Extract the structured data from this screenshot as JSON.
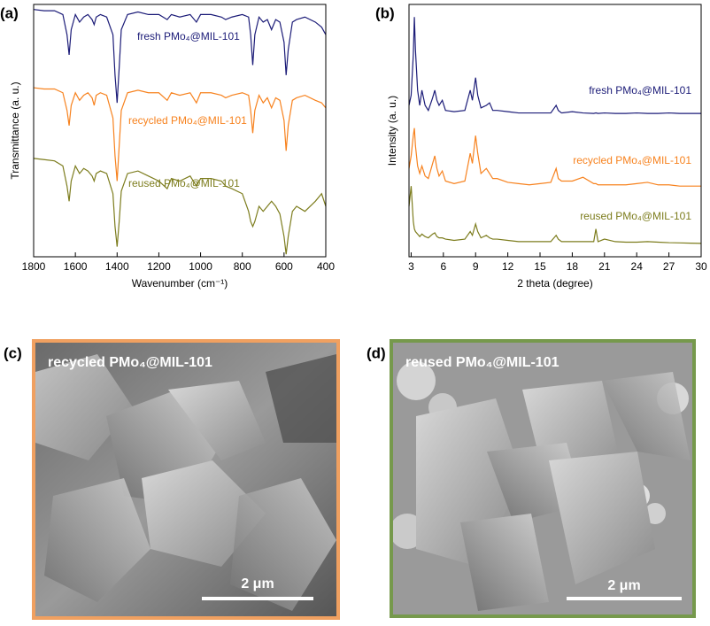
{
  "chart_data": [
    {
      "type": "line",
      "panel": "(a)",
      "xlabel": "Wavenumber (cm⁻¹)",
      "ylabel": "Transmittance (a. u.)",
      "xlim": [
        1800,
        400
      ],
      "xticks": [
        1800,
        1600,
        1400,
        1200,
        1000,
        800,
        600,
        400
      ],
      "ylim": [
        0,
        100
      ],
      "x": [
        1800,
        1750,
        1700,
        1660,
        1640,
        1630,
        1620,
        1600,
        1580,
        1560,
        1540,
        1520,
        1510,
        1500,
        1480,
        1450,
        1420,
        1410,
        1400,
        1390,
        1380,
        1350,
        1300,
        1250,
        1200,
        1160,
        1140,
        1100,
        1050,
        1020,
        1000,
        950,
        900,
        880,
        850,
        800,
        770,
        760,
        750,
        740,
        720,
        700,
        680,
        660,
        640,
        620,
        600,
        590,
        580,
        560,
        540,
        500,
        450,
        420,
        400
      ],
      "series": [
        {
          "name": "fresh PMo₄@MIL-101",
          "color": "#1c1c78",
          "values": [
            98,
            97.5,
            97.5,
            96,
            88,
            80,
            90,
            96,
            93,
            95,
            96,
            94,
            92,
            95,
            96,
            95,
            88,
            72,
            61,
            75,
            90,
            96,
            97,
            96,
            96,
            94,
            96,
            95,
            96,
            93,
            96,
            96,
            95,
            94,
            95,
            96,
            95,
            88,
            76,
            88,
            95,
            93,
            94,
            90,
            94,
            93,
            85,
            72,
            82,
            93,
            94,
            95,
            93,
            91,
            88
          ]
        },
        {
          "name": "recycled PMo₄@MIL-101",
          "color": "#f7821e",
          "values": [
            67,
            66.5,
            66.5,
            65,
            58,
            52,
            60,
            65,
            62,
            64,
            65,
            63,
            60,
            64,
            65,
            64,
            55,
            40,
            30,
            44,
            58,
            65,
            66,
            65,
            65,
            62,
            65,
            64,
            65,
            61,
            65,
            65,
            64,
            63,
            64,
            65,
            64,
            58,
            49,
            58,
            64,
            61,
            63,
            59,
            63,
            62,
            54,
            42,
            52,
            62,
            63,
            64,
            62,
            61,
            59
          ]
        },
        {
          "name": "reused PMo₄@MIL-101",
          "color": "#7d7d1e",
          "values": [
            39,
            38.5,
            38,
            36,
            28,
            22,
            30,
            36,
            33,
            35,
            34,
            32,
            30,
            33,
            34,
            33,
            25,
            12,
            4,
            14,
            26,
            33,
            34,
            32,
            30,
            27,
            31,
            30,
            32,
            28,
            31,
            31,
            30,
            28,
            27,
            25,
            18,
            14,
            12,
            14,
            20,
            18,
            20,
            22,
            20,
            17,
            8,
            1,
            8,
            18,
            20,
            18,
            22,
            25,
            20
          ]
        }
      ]
    },
    {
      "type": "line",
      "panel": "(b)",
      "xlabel": "2 theta (degree)",
      "ylabel": "Intensity (a. u.)",
      "xlim": [
        2.8,
        30
      ],
      "xticks": [
        3,
        6,
        9,
        12,
        15,
        18,
        21,
        24,
        27,
        30
      ],
      "ylim": [
        0,
        100
      ],
      "x": [
        2.8,
        3.0,
        3.2,
        3.3,
        3.4,
        3.6,
        3.8,
        4.0,
        4.3,
        4.6,
        5.0,
        5.2,
        5.4,
        5.6,
        5.9,
        6.2,
        7,
        8,
        8.5,
        8.7,
        9,
        9.2,
        9.5,
        10,
        10.3,
        10.6,
        11,
        12,
        13,
        14,
        15,
        16,
        16.5,
        16.7,
        17,
        18,
        19,
        20,
        20.2,
        20.4,
        21,
        22,
        23,
        24,
        25,
        26,
        27,
        28,
        29,
        30
      ],
      "series": [
        {
          "name": "fresh PMo₄@MIL-101",
          "color": "#1c1c78",
          "values": [
            60,
            64,
            80,
            95,
            82,
            66,
            60,
            66,
            60,
            58,
            63,
            66,
            62,
            60,
            62,
            58,
            57.5,
            58,
            66,
            62,
            71,
            64,
            59,
            60,
            61,
            58,
            58,
            57.5,
            57,
            57,
            57,
            57,
            60,
            58,
            57,
            57.5,
            57,
            56.8,
            57,
            56.8,
            57,
            56.8,
            56.8,
            57,
            56.8,
            56.8,
            57,
            56.8,
            56.8,
            56.8
          ]
        },
        {
          "name": "recycled PMo₄@MIL-101",
          "color": "#f7821e",
          "values": [
            35,
            40,
            48,
            51,
            44,
            36,
            33,
            36,
            32,
            31,
            37,
            40,
            35,
            32,
            34,
            30,
            29,
            30,
            41,
            37,
            48,
            41,
            33,
            35,
            33,
            31,
            31,
            29.5,
            29,
            28.5,
            29,
            29.5,
            35,
            31,
            30,
            30,
            31.5,
            29,
            29,
            28.5,
            28.5,
            28.5,
            28.5,
            29,
            29.5,
            28.5,
            28.5,
            28,
            28,
            28
          ]
        },
        {
          "name": "reused PMo₄@MIL-101",
          "color": "#7d7d1e",
          "values": [
            20,
            28,
            14,
            11,
            10,
            9,
            8,
            9,
            8,
            7.5,
            9,
            9.5,
            8,
            7.5,
            7.5,
            7,
            6.5,
            7,
            10,
            8.5,
            13,
            10,
            7.5,
            8.5,
            7.5,
            7,
            7,
            6.5,
            6,
            6,
            6,
            6,
            8.5,
            7,
            6,
            6,
            6,
            6,
            11,
            6,
            7,
            6,
            5.8,
            5.8,
            6,
            5.8,
            5.6,
            5.5,
            5.4,
            5.3
          ]
        }
      ]
    }
  ],
  "images": [
    {
      "panel": "(c)",
      "label": "recycled PMo₄@MIL-101",
      "scale_bar": "2 μm"
    },
    {
      "panel": "(d)",
      "label": "reused PMo₄@MIL-101",
      "scale_bar": "2 μm"
    }
  ]
}
